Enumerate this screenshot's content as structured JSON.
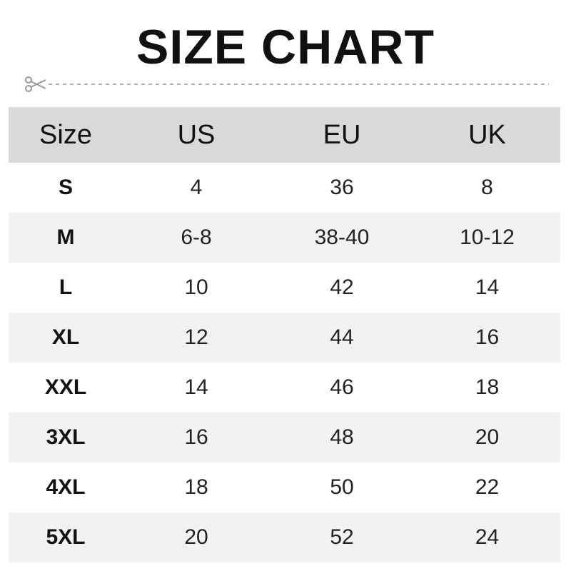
{
  "title": "SIZE CHART",
  "icons": {
    "cut": "scissors-icon"
  },
  "table": {
    "headers": [
      "Size",
      "US",
      "EU",
      "UK"
    ],
    "rows": [
      [
        "S",
        "4",
        "36",
        "8"
      ],
      [
        "M",
        "6-8",
        "38-40",
        "10-12"
      ],
      [
        "L",
        "10",
        "42",
        "14"
      ],
      [
        "XL",
        "12",
        "44",
        "16"
      ],
      [
        "XXL",
        "14",
        "46",
        "18"
      ],
      [
        "3XL",
        "16",
        "48",
        "20"
      ],
      [
        "4XL",
        "18",
        "50",
        "22"
      ],
      [
        "5XL",
        "20",
        "52",
        "24"
      ]
    ]
  },
  "colors": {
    "header_bg": "#d9d9d9",
    "alt_row_bg": "#f2f2f2"
  }
}
